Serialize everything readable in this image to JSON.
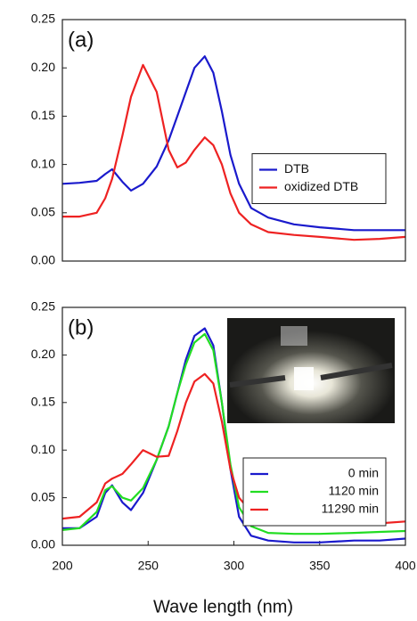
{
  "chart_data": [
    {
      "type": "line",
      "annotation": "(a)",
      "x": [
        200,
        210,
        220,
        225,
        229,
        235,
        240,
        247,
        255,
        262,
        267,
        272,
        277,
        283,
        288,
        293,
        298,
        303,
        310,
        320,
        335,
        350,
        370,
        385,
        400
      ],
      "series": [
        {
          "name": "DTB",
          "color": "#1a1acc",
          "values": [
            0.08,
            0.081,
            0.083,
            0.09,
            0.095,
            0.082,
            0.073,
            0.08,
            0.098,
            0.125,
            0.15,
            0.175,
            0.2,
            0.212,
            0.195,
            0.155,
            0.11,
            0.08,
            0.055,
            0.045,
            0.038,
            0.035,
            0.032,
            0.032,
            0.032
          ]
        },
        {
          "name": "oxidized DTB",
          "color": "#ee2222",
          "values": [
            0.046,
            0.046,
            0.05,
            0.065,
            0.085,
            0.13,
            0.17,
            0.203,
            0.175,
            0.115,
            0.097,
            0.102,
            0.115,
            0.128,
            0.12,
            0.1,
            0.07,
            0.05,
            0.038,
            0.03,
            0.027,
            0.025,
            0.022,
            0.023,
            0.025
          ]
        }
      ],
      "xlim": [
        200,
        400
      ],
      "ylim": [
        0,
        0.25
      ],
      "yticks": [
        {
          "value": 0,
          "label": "0.00"
        },
        {
          "value": 0.05,
          "label": "0.05"
        },
        {
          "value": 0.1,
          "label": "0.10"
        },
        {
          "value": 0.15,
          "label": "0.15"
        },
        {
          "value": 0.2,
          "label": "0.20"
        },
        {
          "value": 0.25,
          "label": "0.25"
        }
      ],
      "legend": "center right"
    },
    {
      "type": "line",
      "annotation": "(b)",
      "x_label": "Wave length (nm)",
      "x": [
        200,
        210,
        220,
        225,
        229,
        235,
        240,
        247,
        255,
        262,
        267,
        272,
        277,
        283,
        288,
        293,
        298,
        303,
        310,
        320,
        335,
        350,
        370,
        385,
        400
      ],
      "series": [
        {
          "name": "0 min",
          "color": "#1a1acc",
          "values": [
            0.018,
            0.018,
            0.03,
            0.055,
            0.063,
            0.045,
            0.037,
            0.055,
            0.09,
            0.125,
            0.16,
            0.195,
            0.22,
            0.228,
            0.21,
            0.15,
            0.08,
            0.03,
            0.01,
            0.005,
            0.003,
            0.003,
            0.005,
            0.005,
            0.007
          ]
        },
        {
          "name": "1120 min",
          "color": "#22dd22",
          "values": [
            0.016,
            0.018,
            0.035,
            0.058,
            0.062,
            0.05,
            0.047,
            0.06,
            0.09,
            0.125,
            0.16,
            0.19,
            0.213,
            0.222,
            0.205,
            0.15,
            0.085,
            0.04,
            0.02,
            0.013,
            0.012,
            0.012,
            0.013,
            0.014,
            0.015
          ]
        },
        {
          "name": "11290 min",
          "color": "#ee2222",
          "values": [
            0.028,
            0.03,
            0.045,
            0.065,
            0.07,
            0.075,
            0.085,
            0.1,
            0.093,
            0.094,
            0.12,
            0.15,
            0.172,
            0.18,
            0.17,
            0.13,
            0.08,
            0.05,
            0.035,
            0.028,
            0.025,
            0.025,
            0.024,
            0.023,
            0.025
          ]
        }
      ],
      "xlim": [
        200,
        400
      ],
      "xticks": [
        200,
        250,
        300,
        350,
        400
      ],
      "ylim": [
        0,
        0.25
      ],
      "yticks": [
        {
          "value": 0,
          "label": "0.00"
        },
        {
          "value": 0.05,
          "label": "0.05"
        },
        {
          "value": 0.1,
          "label": "0.10"
        },
        {
          "value": 0.15,
          "label": "0.15"
        },
        {
          "value": 0.2,
          "label": "0.20"
        },
        {
          "value": 0.25,
          "label": "0.25"
        }
      ],
      "legend": "lower right"
    }
  ]
}
